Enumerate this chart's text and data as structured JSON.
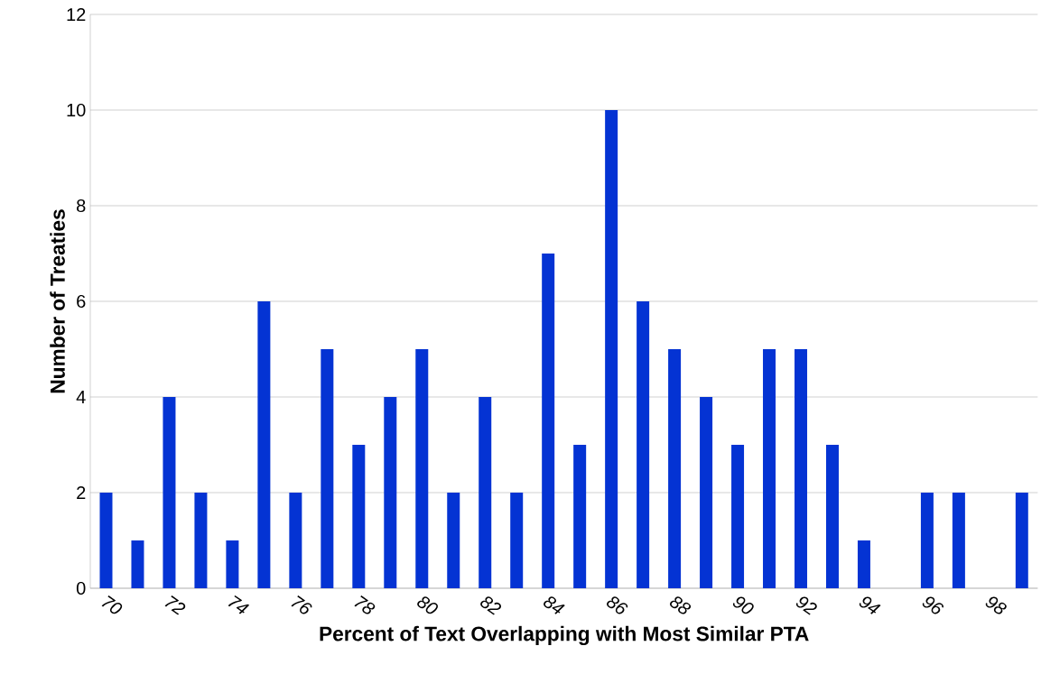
{
  "chart_data": {
    "type": "bar",
    "xlabel": "Percent of Text Overlapping with Most Similar PTA",
    "ylabel": "Number of Treaties",
    "categories": [
      "70",
      null,
      "72",
      null,
      "74",
      null,
      "76",
      null,
      "78",
      null,
      "80",
      null,
      "82",
      null,
      "84",
      null,
      "86",
      null,
      "88",
      null,
      "90",
      null,
      "92",
      null,
      "94",
      null,
      "96",
      null,
      "98",
      null
    ],
    "values": [
      2,
      1,
      4,
      2,
      1,
      6,
      2,
      5,
      3,
      4,
      5,
      2,
      4,
      2,
      7,
      3,
      10,
      6,
      5,
      4,
      3,
      5,
      5,
      3,
      1,
      0,
      2,
      2,
      0,
      2
    ],
    "color": "#0433d3",
    "ylim": [
      0,
      12
    ],
    "yticks": [
      0,
      2,
      4,
      6,
      8,
      10,
      12
    ],
    "grid": "y"
  }
}
